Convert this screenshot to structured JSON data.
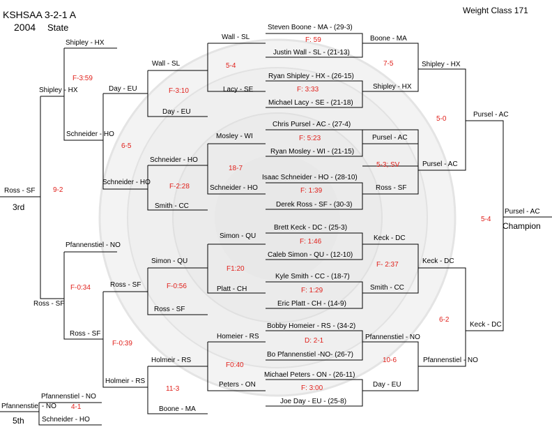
{
  "header": {
    "title_line1": "KSHSAA 3-2-1 A",
    "title_year": "2004",
    "title_event": "State",
    "weight_class": "Weight Class 171"
  },
  "round1": [
    {
      "top": "Steven Boone - MA - (29-3)",
      "score": "F: 59",
      "bottom": "Justin Wall - SL - (21-13)"
    },
    {
      "top": "Ryan Shipley - HX - (26-15)",
      "score": "F:  3:33",
      "bottom": "Michael Lacy - SE - (21-18)"
    },
    {
      "top": "Chris Pursel - AC - (27-4)",
      "score": "F: 5:23",
      "bottom": "Ryan Mosley - WI - (21-15)"
    },
    {
      "top": "Isaac Schneider - HO - (28-10)",
      "score": "F: 1:39",
      "bottom": "Derek Ross - SF - (30-3)"
    },
    {
      "top": "Brett Keck - DC - (25-3)",
      "score": "F: 1:46",
      "bottom": "Caleb Simon - QU - (12-10)"
    },
    {
      "top": "Kyle Smith - CC - (18-7)",
      "score": "F: 1:29",
      "bottom": "Eric Platt - CH - (14-9)"
    },
    {
      "top": "Bobby Homeier - RS - (34-2)",
      "score": "D: 2-1",
      "bottom": "Bo Pfannenstiel -NO- (26-7)"
    },
    {
      "top": "Michael Peters - ON - (26-11)",
      "score": "F: 3:00",
      "bottom": "Joe Day - EU - (25-8)"
    }
  ],
  "championship": {
    "quarter_winners": [
      "Boone - MA",
      "Shipley - HX",
      "Pursel - AC",
      "Ross - SF",
      "Keck - DC",
      "Smith - CC",
      "Pfannenstiel - NO",
      "Day - EU"
    ],
    "quarter_scores": [
      "7-5",
      "5-3; SV",
      "F- 2:37",
      "10-6"
    ],
    "semi_winners": [
      "Shipley - HX",
      "Pursel - AC",
      "Keck - DC",
      "Pfannenstiel - NO"
    ],
    "semi_scores": [
      "5-0",
      "6-2"
    ],
    "finalists": [
      "Pursel - AC",
      "Keck - DC"
    ],
    "final_score": "5-4",
    "champion": "Pursel - AC",
    "champion_label": "Champion"
  },
  "consolation": {
    "first_round": [
      {
        "top": "Wall - SL",
        "score": "5-4",
        "bottom": "Lacy - SE"
      },
      {
        "top": "Mosley - WI",
        "score": "18-7",
        "bottom": "Schneider - HO"
      },
      {
        "top": "Simon - QU",
        "score": "F1:20",
        "bottom": "Platt - CH"
      },
      {
        "top": "Homeier - RS",
        "score": "F0:40",
        "bottom": "Peters - ON"
      }
    ],
    "second_round": [
      {
        "top": "Wall - SL",
        "score": "F-3:10",
        "bottom": "Day - EU"
      },
      {
        "top": "Schneider - HO",
        "score": "F-2:28",
        "bottom": "Smith - CC"
      },
      {
        "top": "Simon - QU",
        "score": "F-0:56",
        "bottom": "Ross - SF"
      },
      {
        "top": "Holmeir - RS",
        "score": "11-3",
        "bottom": "Boone - MA"
      }
    ],
    "third_round": [
      {
        "top": "Day - EU",
        "score": "6-5",
        "bottom": "Schneider - HO"
      },
      {
        "top": "Ross - SF",
        "score": "F-0:39",
        "bottom": "Holmeir - RS"
      }
    ],
    "fourth_round": [
      {
        "top": "Shipley - HX",
        "score": "F-3:59",
        "bottom": "Schneider - HO"
      },
      {
        "top": "Pfannenstiel - NO",
        "score": "F-0:34",
        "bottom": "Ross - SF"
      }
    ],
    "semi_winners": [
      "Shipley - HX",
      "Ross - SF"
    ],
    "third_score": "9-2",
    "third_winner": "Ross - SF",
    "third_label": "3rd",
    "fifth": {
      "top": "Pfannenstiel - NO",
      "score": "4-1",
      "bottom": "Schneider - HO",
      "winner": "Pfannenstiel - NO",
      "label": "5th"
    }
  }
}
